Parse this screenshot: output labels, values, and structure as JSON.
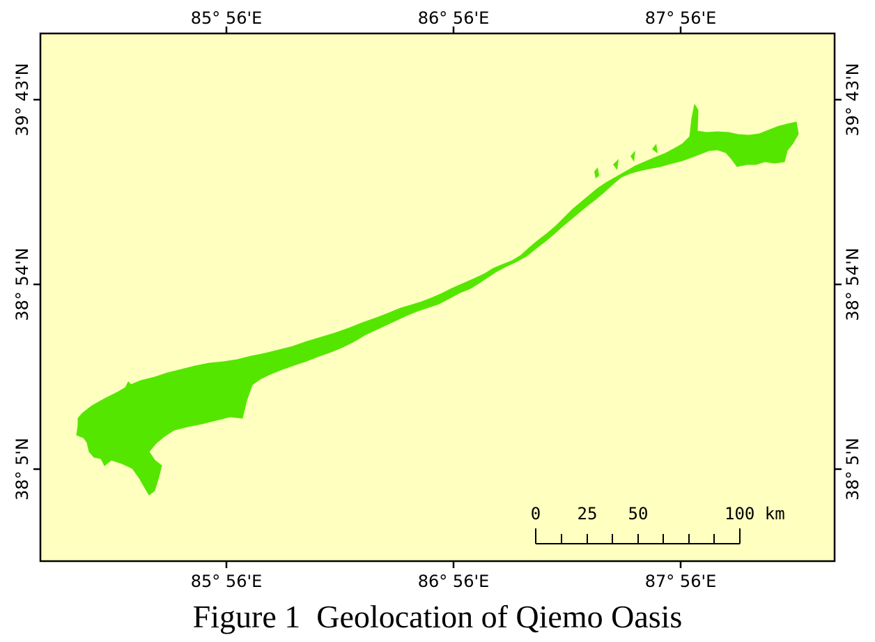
{
  "figure": {
    "caption": "Figure 1  Geolocation of Qiemo Oasis"
  },
  "map": {
    "background_color": "#ffffc0",
    "oasis_color": "#55e600",
    "longitude_labels": [
      "85° 56'E",
      "86° 56'E",
      "87° 56'E"
    ],
    "latitude_labels": [
      "39° 43'N",
      "38° 54'N",
      "38° 5'N"
    ]
  },
  "scale_bar": {
    "labels": [
      "0",
      "25",
      "50",
      "100 km"
    ]
  }
}
